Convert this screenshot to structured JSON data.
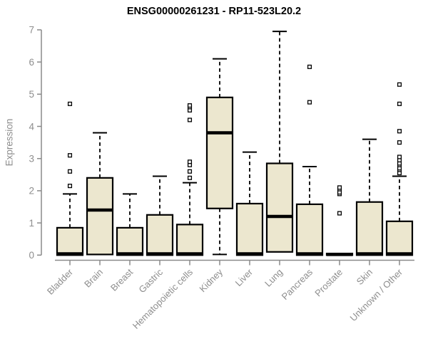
{
  "chart_data": {
    "type": "boxplot",
    "title": "ENSG00000261231 - RP11-523L20.2",
    "ylabel": "Expression",
    "ylim": [
      0,
      7
    ],
    "yticks": [
      0,
      1,
      2,
      3,
      4,
      5,
      6,
      7
    ],
    "grid": false,
    "legend": "none",
    "categories": [
      "Bladder",
      "Brain",
      "Breast",
      "Gastric",
      "Hematopoietic cells",
      "Kidney",
      "Liver",
      "Lung",
      "Pancreas",
      "Prostate",
      "Skin",
      "Unknown / Other"
    ],
    "series": [
      {
        "category": "Bladder",
        "low": 0,
        "q1": 0,
        "median": 0.04,
        "q3": 0.85,
        "high": 1.9,
        "outliers": [
          2.15,
          2.6,
          3.1,
          4.7
        ]
      },
      {
        "category": "Brain",
        "low": 0.02,
        "q1": 0.02,
        "median": 1.4,
        "q3": 2.4,
        "high": 3.8,
        "outliers": []
      },
      {
        "category": "Breast",
        "low": 0,
        "q1": 0,
        "median": 0.04,
        "q3": 0.85,
        "high": 1.9,
        "outliers": []
      },
      {
        "category": "Gastric",
        "low": 0,
        "q1": 0,
        "median": 0.04,
        "q3": 1.25,
        "high": 2.45,
        "outliers": []
      },
      {
        "category": "Hematopoietic cells",
        "low": 0,
        "q1": 0,
        "median": 0.04,
        "q3": 0.95,
        "high": 2.25,
        "outliers": [
          2.4,
          2.6,
          2.8,
          2.9,
          4.2,
          4.5,
          4.6,
          4.65
        ]
      },
      {
        "category": "Kidney",
        "low": 0.02,
        "q1": 1.45,
        "median": 3.8,
        "q3": 4.9,
        "high": 6.1,
        "outliers": []
      },
      {
        "category": "Liver",
        "low": 0,
        "q1": 0,
        "median": 0.04,
        "q3": 1.6,
        "high": 3.2,
        "outliers": []
      },
      {
        "category": "Lung",
        "low": 0.1,
        "q1": 0.1,
        "median": 1.2,
        "q3": 2.85,
        "high": 6.95,
        "outliers": []
      },
      {
        "category": "Pancreas",
        "low": 0,
        "q1": 0,
        "median": 0.04,
        "q3": 1.58,
        "high": 2.75,
        "outliers": [
          4.75,
          5.85
        ]
      },
      {
        "category": "Prostate",
        "low": 0,
        "q1": 0,
        "median": 0.02,
        "q3": 0.05,
        "high": 0.05,
        "outliers": [
          1.3,
          1.9,
          1.95,
          2.05,
          2.1
        ]
      },
      {
        "category": "Skin",
        "low": 0,
        "q1": 0,
        "median": 0.04,
        "q3": 1.65,
        "high": 3.6,
        "outliers": []
      },
      {
        "category": "Unknown / Other",
        "low": 0,
        "q1": 0,
        "median": 0.04,
        "q3": 1.05,
        "high": 2.45,
        "outliers": [
          2.55,
          2.65,
          2.7,
          2.8,
          2.85,
          2.95,
          3.05,
          3.5,
          3.85,
          4.7,
          5.3
        ]
      }
    ],
    "colors": {
      "box_fill": "#ECE7CF",
      "box_border": "#000000",
      "median": "#000000",
      "whisker": "#000000",
      "outlier_border": "#000000",
      "outlier_fill": "#ffffff",
      "axis": "#8a8a8a",
      "tick_label": "#8e8e8e",
      "title": "#000000",
      "background": "#ffffff"
    }
  }
}
